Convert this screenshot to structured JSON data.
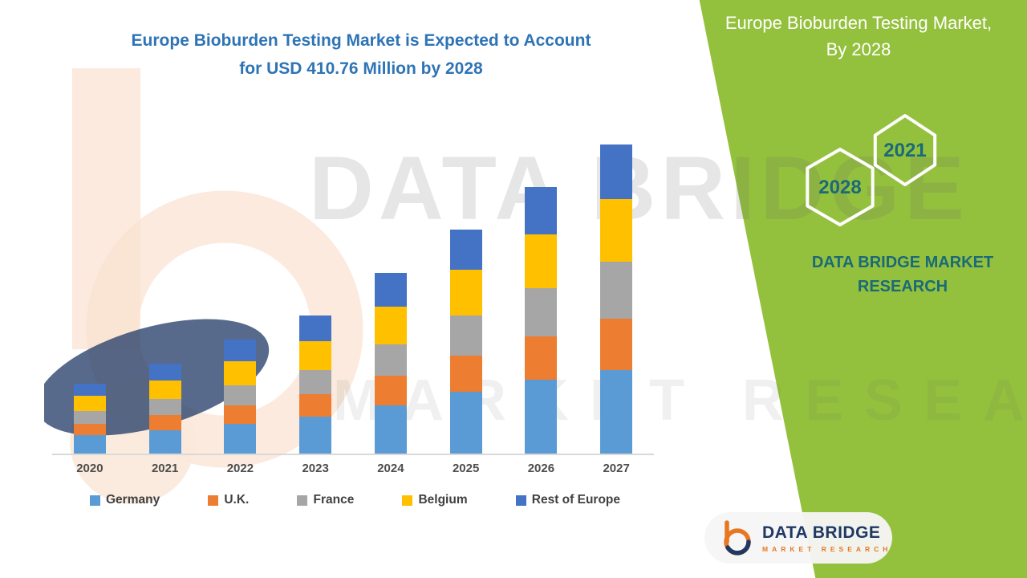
{
  "title": {
    "line1": "Europe Bioburden Testing Market is Expected to Account",
    "line2": "for USD 410.76 Million by 2028"
  },
  "watermark": {
    "line1": "DATA BRIDGE",
    "line2": "MARKET RESEARCH"
  },
  "green_panel": {
    "bg_color": "#94C13D",
    "title_line1": "Europe Bioburden Testing Market,",
    "title_line2": "By 2028",
    "hexagons": [
      {
        "year": "2028"
      },
      {
        "year": "2021"
      }
    ],
    "brand_line1": "DATA BRIDGE MARKET",
    "brand_line2": "RESEARCH"
  },
  "logo": {
    "name": "DATA BRIDGE",
    "subtitle": "MARKET RESEARCH"
  },
  "chart_data": {
    "type": "bar",
    "stacked": true,
    "title": "Europe Bioburden Testing Market is Expected to Account for USD 410.76 Million by 2028",
    "value_label": "USD Million",
    "categories": [
      "2020",
      "2021",
      "2022",
      "2023",
      "2024",
      "2025",
      "2026",
      "2027"
    ],
    "series": [
      {
        "name": "Germany",
        "color": "#5B9BD5",
        "values": [
          22,
          28,
          36,
          44,
          58,
          74,
          88,
          100
        ]
      },
      {
        "name": "U.K.",
        "color": "#ED7D31",
        "values": [
          14,
          18,
          22,
          27,
          35,
          43,
          52,
          62
        ]
      },
      {
        "name": "France",
        "color": "#A6A6A6",
        "values": [
          15,
          19,
          24,
          29,
          38,
          48,
          58,
          68
        ]
      },
      {
        "name": "Belgium",
        "color": "#FFC000",
        "values": [
          18,
          23,
          29,
          35,
          45,
          55,
          65,
          75
        ]
      },
      {
        "name": "Rest of Europe",
        "color": "#4472C4",
        "values": [
          15,
          20,
          26,
          30,
          40,
          48,
          56,
          65
        ]
      }
    ],
    "totals": [
      84,
      108,
      137,
      165,
      216,
      268,
      319,
      370
    ],
    "legend_position": "bottom",
    "grid": false,
    "ylim": [
      0,
      400
    ]
  }
}
